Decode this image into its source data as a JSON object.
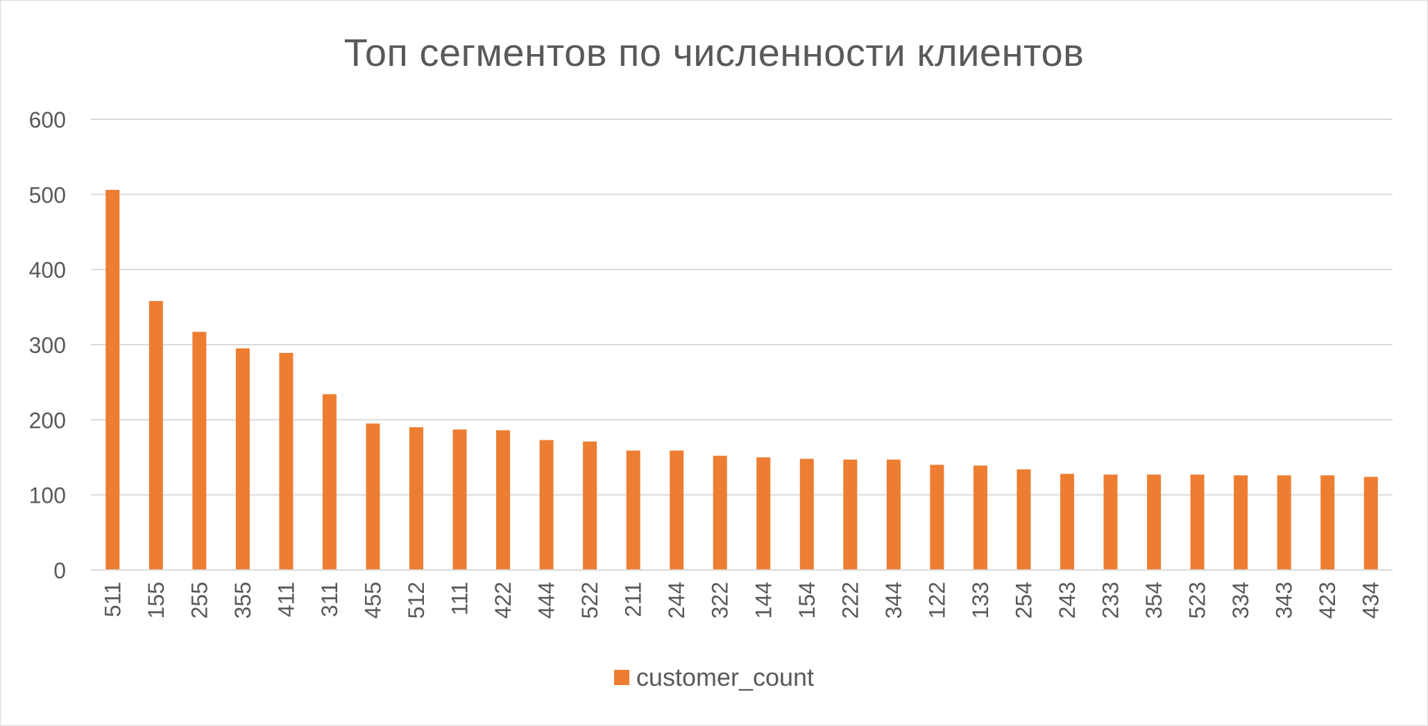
{
  "chart_data": {
    "type": "bar",
    "title": "Топ сегментов по численности клиентов",
    "xlabel": "",
    "ylabel": "",
    "ylim": [
      0,
      600
    ],
    "yticks": [
      0,
      100,
      200,
      300,
      400,
      500,
      600
    ],
    "grid": true,
    "legend_position": "bottom",
    "categories": [
      "511",
      "155",
      "255",
      "355",
      "411",
      "311",
      "455",
      "512",
      "111",
      "422",
      "444",
      "522",
      "211",
      "244",
      "322",
      "144",
      "154",
      "222",
      "344",
      "122",
      "133",
      "254",
      "243",
      "233",
      "354",
      "523",
      "334",
      "343",
      "423",
      "434"
    ],
    "series": [
      {
        "name": "customer_count",
        "color": "#ed7d31",
        "values": [
          506,
          358,
          317,
          295,
          289,
          234,
          195,
          190,
          187,
          186,
          173,
          171,
          159,
          159,
          152,
          150,
          148,
          147,
          147,
          140,
          139,
          134,
          128,
          127,
          127,
          127,
          126,
          126,
          126,
          124
        ]
      }
    ]
  }
}
